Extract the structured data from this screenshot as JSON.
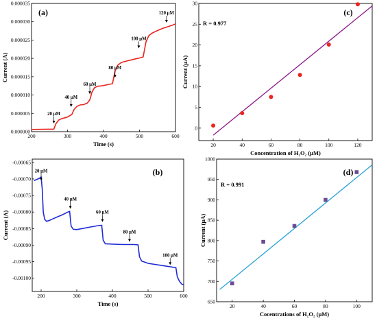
{
  "chart_data": [
    {
      "panel_label": "(a)",
      "type": "line",
      "xlabel": "Time (s)",
      "ylabel": "Current (A)",
      "xlim": [
        200,
        600
      ],
      "ylim": [
        0,
        3.5e-05
      ],
      "xticks": [
        200,
        300,
        400,
        500,
        600
      ],
      "xtick_labels": [
        "200",
        "300",
        "400",
        "500",
        "600"
      ],
      "yticks": [
        0,
        5e-06,
        1e-05,
        1.5e-05,
        2e-05,
        2.5e-05,
        3e-05,
        3.5e-05
      ],
      "ytick_labels": [
        "0.000000",
        "0.000005",
        "0.000010",
        "0.000015",
        "0.000020",
        "0.000025",
        "0.000030",
        "0.000035"
      ],
      "color": "#e8251f",
      "series": [
        {
          "x": [
            200,
            262,
            268,
            276,
            285,
            290,
            300,
            312,
            318,
            326,
            335,
            345,
            355,
            362,
            368,
            375,
            384,
            395,
            410,
            425,
            432,
            440,
            450,
            465,
            478,
            490,
            500,
            510,
            518,
            526,
            535,
            550,
            565,
            580,
            595,
            600
          ],
          "y": [
            6e-07,
            7e-07,
            2.2e-06,
            3.2e-06,
            3.6e-06,
            3.7e-06,
            4e-06,
            4.7e-06,
            6e-06,
            6.9e-06,
            7.3e-06,
            7.4e-06,
            7.8e-06,
            8.7e-06,
            1.08e-05,
            1.2e-05,
            1.24e-05,
            1.25e-05,
            1.28e-05,
            1.31e-05,
            1.65e-05,
            1.82e-05,
            1.89e-05,
            1.93e-05,
            1.96e-05,
            1.99e-05,
            2.01e-05,
            2.04e-05,
            2.45e-05,
            2.62e-05,
            2.69e-05,
            2.76e-05,
            2.82e-05,
            2.87e-05,
            2.92e-05,
            2.94e-05
          ]
        }
      ],
      "annotations": [
        {
          "text": "20 μM",
          "x": 262,
          "y": 4.5e-06
        },
        {
          "text": "40 μM",
          "x": 310,
          "y": 9e-06
        },
        {
          "text": "60 μM",
          "x": 362,
          "y": 1.25e-05
        },
        {
          "text": "80 μM",
          "x": 432,
          "y": 1.7e-05
        },
        {
          "text": "100 μM",
          "x": 498,
          "y": 2.5e-05
        },
        {
          "text": "120 μM",
          "x": 575,
          "y": 3.2e-05
        }
      ]
    },
    {
      "panel_label": "(c)",
      "type": "scatter",
      "xlabel": "Concentration of H₂O₂ (μM)",
      "ylabel": "Current (μA)",
      "xlim": [
        10,
        130
      ],
      "ylim": [
        -3,
        30
      ],
      "xticks": [
        20,
        40,
        60,
        80,
        100,
        120
      ],
      "xtick_labels": [
        "20",
        "40",
        "60",
        "80",
        "100",
        "120"
      ],
      "yticks": [
        0,
        5,
        10,
        15,
        20,
        25,
        30
      ],
      "ytick_labels": [
        "0",
        "5",
        "10",
        "15",
        "20",
        "25",
        "30"
      ],
      "r_label": "R = 0.977",
      "point_color": "#e8251f",
      "fit_color": "#8b1a8c",
      "points": {
        "x": [
          20,
          40,
          60,
          80,
          100,
          120
        ],
        "y": [
          0.6,
          3.6,
          7.5,
          12.8,
          20.1,
          29.8
        ]
      },
      "fit": {
        "x": [
          20,
          130
        ],
        "y": [
          -1.7,
          29.4
        ]
      }
    },
    {
      "panel_label": "(b)",
      "type": "line",
      "xlabel": "Time (s)",
      "ylabel": "Current (A)",
      "xlim": [
        175,
        600
      ],
      "ylim": [
        -0.00104,
        -0.00064
      ],
      "xticks": [
        200,
        300,
        400,
        500,
        600
      ],
      "xtick_labels": [
        "200",
        "300",
        "400",
        "500",
        "600"
      ],
      "yticks": [
        -0.00065,
        -0.0007,
        -0.00075,
        -0.0008,
        -0.00085,
        -0.0009,
        -0.00095,
        -0.001
      ],
      "ytick_labels": [
        "-0.00065",
        "-0.00070",
        "-0.00075",
        "-0.00080",
        "-0.00085",
        "-0.00090",
        "-0.00095",
        "-0.00100"
      ],
      "color": "#1f2bd4",
      "series": [
        {
          "x": [
            180,
            195,
            200,
            203,
            206,
            210,
            215,
            222,
            230,
            245,
            260,
            275,
            280,
            284,
            290,
            300,
            320,
            340,
            360,
            370,
            374,
            380,
            400,
            430,
            460,
            472,
            476,
            482,
            500,
            530,
            560,
            578,
            582,
            586,
            590,
            595,
            600
          ],
          "y": [
            -0.000705,
            -0.000698,
            -0.000694,
            -0.00073,
            -0.0008,
            -0.000822,
            -0.000828,
            -0.000826,
            -0.000822,
            -0.000815,
            -0.000808,
            -0.0008,
            -0.000798,
            -0.000842,
            -0.000852,
            -0.000853,
            -0.000849,
            -0.000845,
            -0.000841,
            -0.00084,
            -0.000885,
            -0.000896,
            -0.000897,
            -0.000898,
            -0.000898,
            -0.000899,
            -0.000935,
            -0.000948,
            -0.000955,
            -0.00096,
            -0.000965,
            -0.000968,
            -0.000995,
            -0.001005,
            -0.001012,
            -0.001018,
            -0.00102
          ]
        }
      ],
      "annotations": [
        {
          "text": "20 μM",
          "x": 200,
          "y": -0.00068
        },
        {
          "text": "40 μM",
          "x": 282,
          "y": -0.000765
        },
        {
          "text": "60 μM",
          "x": 372,
          "y": -0.000805
        },
        {
          "text": "80 μM",
          "x": 448,
          "y": -0.000865
        },
        {
          "text": "100 μM",
          "x": 562,
          "y": -0.000935
        }
      ]
    },
    {
      "panel_label": "(d)",
      "type": "scatter",
      "xlabel": "Cocentrations of H₂O₂ (μM)",
      "ylabel": "Current (μA)",
      "xlim": [
        10,
        110
      ],
      "ylim": [
        650,
        1000
      ],
      "xticks": [
        20,
        40,
        60,
        80,
        100
      ],
      "xtick_labels": [
        "20",
        "40",
        "60",
        "80",
        "100"
      ],
      "yticks": [
        650,
        700,
        750,
        800,
        850,
        900,
        950,
        1000
      ],
      "ytick_labels": [
        "650",
        "700",
        "750",
        "800",
        "850",
        "900",
        "950",
        "1000"
      ],
      "r_label": "R = 0.991",
      "point_color": "#6a4c93",
      "fit_color": "#2aa3d8",
      "points": {
        "x": [
          20,
          40,
          60,
          80,
          100
        ],
        "y": [
          695,
          797,
          836,
          900,
          968
        ]
      },
      "fit": {
        "x": [
          12,
          110
        ],
        "y": [
          680,
          986
        ]
      }
    }
  ]
}
